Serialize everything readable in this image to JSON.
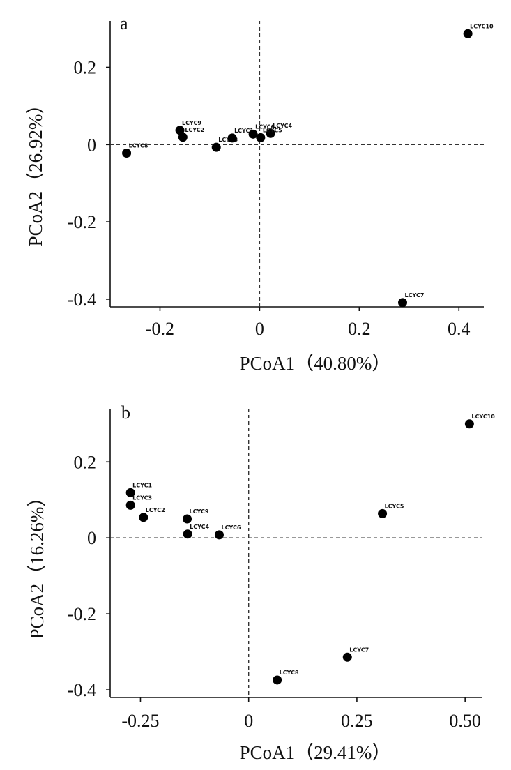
{
  "chart_data": [
    {
      "type": "scatter",
      "panel_label": "a",
      "title": "",
      "xlabel": "PCoA1（40.80%）",
      "ylabel": "PCoA2（26.92%）",
      "xlim": [
        -0.3,
        0.45
      ],
      "ylim": [
        -0.42,
        0.32
      ],
      "xticks": [
        -0.2,
        0,
        0.2,
        0.4
      ],
      "xtick_labels": [
        "-0.2",
        "0",
        "0.2",
        "0.4"
      ],
      "yticks": [
        0.2,
        0,
        -0.2,
        -0.4
      ],
      "ytick_labels": [
        "0.2",
        "0",
        "-0.2",
        "-0.4"
      ],
      "reference_lines": {
        "x": 0,
        "y": 0
      },
      "points": [
        {
          "label": "LCYC10",
          "x": 0.418,
          "y": 0.287
        },
        {
          "label": "LCYC9",
          "x": -0.16,
          "y": 0.037
        },
        {
          "label": "LCYC2",
          "x": -0.154,
          "y": 0.019
        },
        {
          "label": "LCYC8",
          "x": -0.267,
          "y": -0.022
        },
        {
          "label": "LCYC3",
          "x": -0.087,
          "y": -0.007
        },
        {
          "label": "LCYC1",
          "x": -0.055,
          "y": 0.017
        },
        {
          "label": "LCYC6",
          "x": -0.013,
          "y": 0.027
        },
        {
          "label": "LCYC4",
          "x": 0.022,
          "y": 0.029
        },
        {
          "label": "LCYC5",
          "x": 0.002,
          "y": 0.018
        },
        {
          "label": "LCYC7",
          "x": 0.287,
          "y": -0.409
        }
      ]
    },
    {
      "type": "scatter",
      "panel_label": "b",
      "title": "",
      "xlabel": "PCoA1（29.41%）",
      "ylabel": "PCoA2（16.26%）",
      "xlim": [
        -0.32,
        0.54
      ],
      "ylim": [
        -0.42,
        0.34
      ],
      "xticks": [
        -0.25,
        0,
        0.25,
        0.5
      ],
      "xtick_labels": [
        "-0.25",
        "0",
        "0.25",
        "0.50"
      ],
      "yticks": [
        0.2,
        0,
        -0.2,
        -0.4
      ],
      "ytick_labels": [
        "0.2",
        "0",
        "-0.2",
        "-0.4"
      ],
      "reference_lines": {
        "x": 0,
        "y": 0
      },
      "points": [
        {
          "label": "LCYC10",
          "x": 0.51,
          "y": 0.3
        },
        {
          "label": "LCYC1",
          "x": -0.273,
          "y": 0.119
        },
        {
          "label": "LCYC3",
          "x": -0.273,
          "y": 0.086
        },
        {
          "label": "LCYC2",
          "x": -0.243,
          "y": 0.054
        },
        {
          "label": "LCYC9",
          "x": -0.142,
          "y": 0.05
        },
        {
          "label": "LCYC4",
          "x": -0.141,
          "y": 0.01
        },
        {
          "label": "LCYC6",
          "x": -0.068,
          "y": 0.008
        },
        {
          "label": "LCYC5",
          "x": 0.309,
          "y": 0.064
        },
        {
          "label": "LCYC7",
          "x": 0.228,
          "y": -0.314
        },
        {
          "label": "LCYC8",
          "x": 0.066,
          "y": -0.374
        }
      ]
    }
  ]
}
